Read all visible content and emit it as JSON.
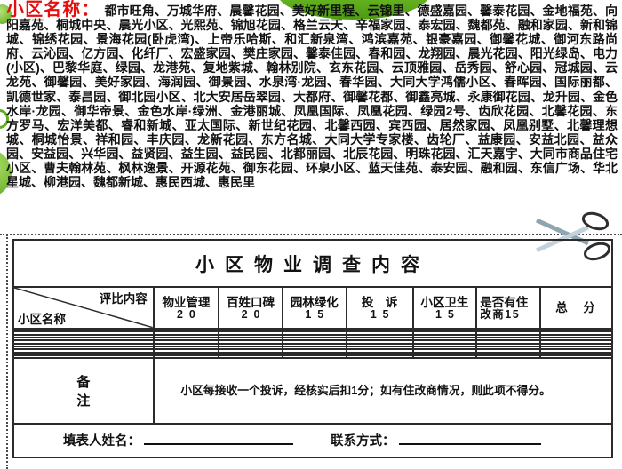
{
  "names": {
    "label": "小区名称：",
    "text": "都市旺角、万城华府、晨馨花园、美好新里程、云锦里、德盛嘉园、馨泰花园、金地福苑、向阳嘉苑、桐城中央、晨光小区、光熙苑、锦旭花园、格兰云天、辛福家园、泰宏园、魏都苑、融和家园、新和锦城、锦绣花园、景海花园(卧虎湾)、上帝乐哈斯、和汇新泉湾、鸿滨嘉苑、银豪嘉园、御馨花城、御河东路尚府、云沁园、亿方园、化纤厂、宏盛家园、樊庄家园、馨泰佳园、春和园、龙翔园、晨光花园、阳光绿岛、电力(小区)、巴黎华庭、绿园、龙港苑、复地紫城、翰林别院、玄东花园、云顶雅园、岳秀园、舒心园、冠城园、云龙苑、御馨园、美好家园、海润园、御景园、水泉湾·龙园、春华园、大同大学鸿儒小区、春晖园、国际丽都、凯德世家、泰昌园、御北园小区、北大安居岳翠园、大都府、御馨花都、御鑫亮城、永康御花园、龙升园、金色水岸·龙园、御华帝景、金色水岸·绿洲、金港丽城、凤凰国际、凤凰花园、绿园2号、齿欣花园、北馨花园、东方罗马、宏洋美都、睿和新城、亚太国际、新世纪花园、北馨西园、宾西园、居然家园、凤凰别墅、北馨理想城、桐城怡景、祥和园、丰庆园、龙新花园、东方名城、大同大学专家楼、齿轮厂、益康园、安益北园、益众园、安益园、兴华园、益贤园、益生园、益民园、北都丽园、北辰花园、明珠花园、汇天嘉宇、大同市商品住宅小区、曹夫翰林苑、枫林逸景、开源花苑、御东花园、环泉小区、蓝天佳苑、泰安园、融和园、东信广场、华北星城、柳港园、魏都新城、惠民西城、惠民里"
  },
  "cut_line": {
    "icon": "scissors"
  },
  "survey_table": {
    "title": "小区物业调查内容",
    "corner": {
      "top_right": "评比内容",
      "bottom_left": "小区名称"
    },
    "columns": [
      {
        "line1": "物业管理",
        "line2": "20"
      },
      {
        "line1": "百姓口碑",
        "line2": "20"
      },
      {
        "line1": "园林绿化",
        "line2": "15"
      },
      {
        "line1": "投　诉",
        "line2": "15"
      },
      {
        "line1": "小区卫生",
        "line2": "15"
      },
      {
        "line1": "是否有住",
        "line2": "改商15"
      },
      {
        "line1": "总　分",
        "line2": ""
      }
    ],
    "empty_row_count": 10,
    "remark_label": "备注",
    "remark_text": "小区每接收一个投诉，经核实后扣1分；如有住改商情况，则此项不得分。",
    "footer": {
      "name_label": "填表人姓名：",
      "contact_label": "联系方式："
    }
  },
  "colors": {
    "accent_red": "#e60f0f",
    "green": "#5fae1d",
    "table_line": "#2b2b2b"
  }
}
